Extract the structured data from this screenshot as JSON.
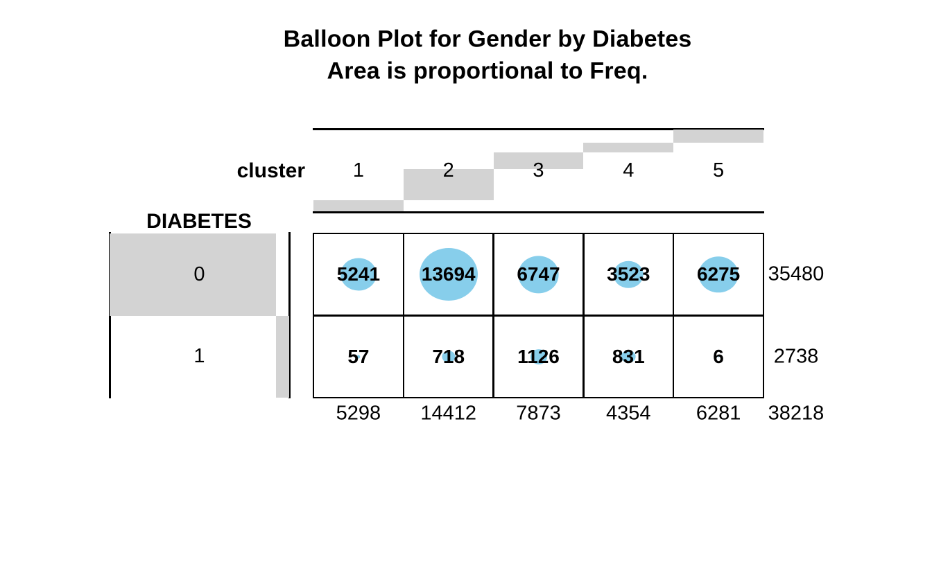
{
  "title": {
    "line1": "Balloon Plot for Gender by Diabetes",
    "line2": "Area is proportional to Freq."
  },
  "chart_data": {
    "type": "balloon",
    "x_axis_label": "cluster",
    "y_axis_label": "DIABETES",
    "columns": [
      "1",
      "2",
      "3",
      "4",
      "5"
    ],
    "rows": [
      "0",
      "1"
    ],
    "values": [
      [
        5241,
        13694,
        6747,
        3523,
        6275
      ],
      [
        57,
        718,
        1126,
        831,
        6
      ]
    ],
    "row_totals": [
      35480,
      2738
    ],
    "col_totals": [
      5298,
      14412,
      7873,
      4354,
      6281
    ],
    "grand_total": 38218,
    "balloon_color": "#87CEEB",
    "margin_bar_color": "#D3D3D3",
    "legend": "area of each balloon is proportional to cell frequency; gray margin bars show cumulative row/column shares"
  }
}
